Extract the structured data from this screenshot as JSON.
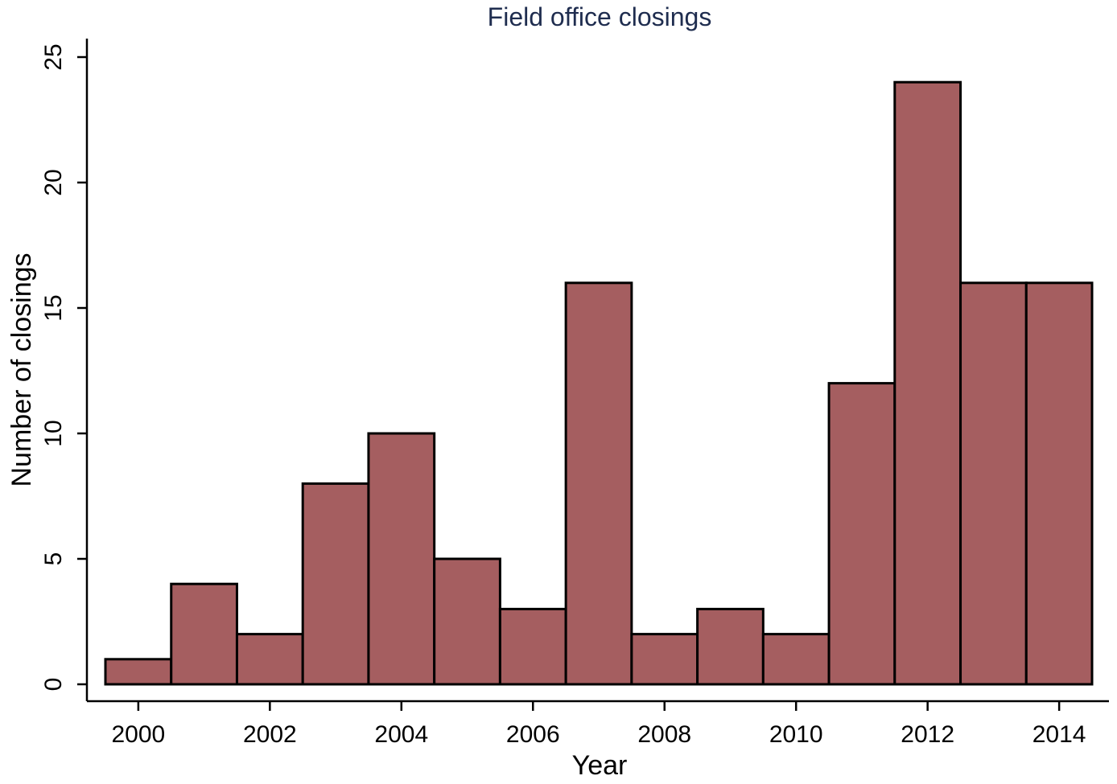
{
  "colors": {
    "bar_fill": "#a55e60",
    "bar_stroke": "#000000",
    "title": "#1f2d4f"
  },
  "chart_data": {
    "type": "bar",
    "title": "Field office closings",
    "xlabel": "Year",
    "ylabel": "Number of closings",
    "categories": [
      "2000",
      "2001",
      "2002",
      "2003",
      "2004",
      "2005",
      "2006",
      "2007",
      "2008",
      "2009",
      "2010",
      "2011",
      "2012",
      "2013",
      "2014"
    ],
    "values": [
      1,
      4,
      2,
      8,
      10,
      5,
      3,
      16,
      2,
      3,
      2,
      12,
      24,
      16,
      16
    ],
    "xlim": [
      1999.5,
      2014.5
    ],
    "ylim": [
      0,
      25
    ],
    "xticks": [
      2000,
      2002,
      2004,
      2006,
      2008,
      2010,
      2012,
      2014
    ],
    "yticks": [
      0,
      5,
      10,
      15,
      20,
      25
    ],
    "grid": false,
    "legend": "none"
  }
}
